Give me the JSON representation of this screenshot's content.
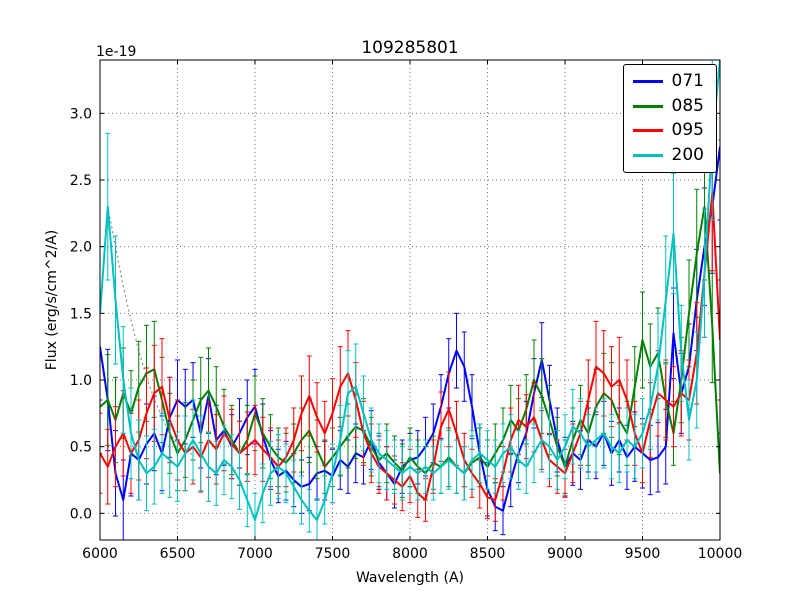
{
  "chart_data": {
    "type": "line",
    "title": "109285801",
    "xlabel": "Wavelength (A)",
    "ylabel": "Flux (erg/s/cm^2/A)",
    "y_offset_text": "1e-19",
    "grid": true,
    "legend_position": "upper right",
    "xlim": [
      6000,
      10000
    ],
    "ylim": [
      -0.2,
      3.4
    ],
    "xticks": [
      6000,
      6500,
      7000,
      7500,
      8000,
      8500,
      9000,
      9500,
      10000
    ],
    "xtick_labels": [
      "6000",
      "6500",
      "7000",
      "7500",
      "8000",
      "8500",
      "9000",
      "9500",
      "10000"
    ],
    "yticks": [
      0.0,
      0.5,
      1.0,
      1.5,
      2.0,
      2.5,
      3.0
    ],
    "ytick_labels": [
      "0.0",
      "0.5",
      "1.0",
      "1.5",
      "2.0",
      "2.5",
      "3.0"
    ],
    "x": [
      6000,
      6050,
      6100,
      6150,
      6200,
      6250,
      6300,
      6350,
      6400,
      6450,
      6500,
      6550,
      6600,
      6650,
      6700,
      6750,
      6800,
      6850,
      6900,
      6950,
      7000,
      7050,
      7100,
      7150,
      7200,
      7250,
      7300,
      7350,
      7400,
      7450,
      7500,
      7550,
      7600,
      7650,
      7700,
      7750,
      7800,
      7850,
      7900,
      7950,
      8000,
      8050,
      8100,
      8150,
      8200,
      8250,
      8300,
      8350,
      8400,
      8450,
      8500,
      8550,
      8600,
      8650,
      8700,
      8750,
      8800,
      8850,
      8900,
      8950,
      9000,
      9050,
      9100,
      9150,
      9200,
      9250,
      9300,
      9350,
      9400,
      9450,
      9500,
      9550,
      9600,
      9650,
      9700,
      9750,
      9800,
      9850,
      9900,
      9950,
      10000
    ],
    "series": [
      {
        "name": "071",
        "color": "#0000ff",
        "values": [
          1.25,
          0.85,
          0.3,
          0.1,
          0.45,
          0.4,
          0.52,
          0.6,
          0.45,
          0.72,
          0.85,
          0.8,
          0.85,
          0.6,
          0.88,
          0.55,
          0.62,
          0.5,
          0.6,
          0.72,
          0.8,
          0.58,
          0.4,
          0.28,
          0.32,
          0.25,
          0.2,
          0.22,
          0.3,
          0.32,
          0.28,
          0.4,
          0.35,
          0.45,
          0.42,
          0.55,
          0.38,
          0.3,
          0.22,
          0.35,
          0.4,
          0.42,
          0.5,
          0.6,
          0.8,
          1.05,
          1.22,
          1.1,
          0.8,
          0.45,
          0.18,
          0.05,
          0.02,
          0.25,
          0.45,
          0.6,
          0.9,
          1.15,
          0.85,
          0.55,
          0.35,
          0.45,
          0.4,
          0.55,
          0.5,
          0.6,
          0.45,
          0.55,
          0.42,
          0.5,
          0.45,
          0.4,
          0.42,
          0.5,
          1.35,
          0.9,
          1.1,
          1.6,
          2.0,
          2.3,
          2.75
        ],
        "errors": [
          0.4,
          0.38,
          0.32,
          0.3,
          0.32,
          0.3,
          0.3,
          0.28,
          0.28,
          0.3,
          0.3,
          0.28,
          0.28,
          0.26,
          0.28,
          0.26,
          0.26,
          0.24,
          0.26,
          0.28,
          0.28,
          0.24,
          0.22,
          0.2,
          0.22,
          0.2,
          0.2,
          0.2,
          0.2,
          0.22,
          0.2,
          0.22,
          0.2,
          0.22,
          0.2,
          0.22,
          0.2,
          0.2,
          0.18,
          0.2,
          0.2,
          0.2,
          0.22,
          0.22,
          0.24,
          0.26,
          0.28,
          0.26,
          0.24,
          0.22,
          0.2,
          0.18,
          0.18,
          0.2,
          0.22,
          0.24,
          0.26,
          0.28,
          0.26,
          0.24,
          0.22,
          0.24,
          0.22,
          0.24,
          0.24,
          0.24,
          0.24,
          0.24,
          0.24,
          0.26,
          0.26,
          0.26,
          0.26,
          0.28,
          0.34,
          0.3,
          0.32,
          0.38,
          0.44,
          0.5,
          0.55
        ]
      },
      {
        "name": "085",
        "color": "#008000",
        "values": [
          0.8,
          0.85,
          0.7,
          0.9,
          0.75,
          0.95,
          1.05,
          1.08,
          0.85,
          0.6,
          0.45,
          0.55,
          0.7,
          0.85,
          0.92,
          0.8,
          0.65,
          0.55,
          0.45,
          0.55,
          0.75,
          0.6,
          0.5,
          0.42,
          0.38,
          0.45,
          0.55,
          0.62,
          0.48,
          0.35,
          0.42,
          0.5,
          0.58,
          0.65,
          0.62,
          0.5,
          0.4,
          0.45,
          0.38,
          0.32,
          0.42,
          0.35,
          0.3,
          0.38,
          0.35,
          0.42,
          0.35,
          0.3,
          0.38,
          0.42,
          0.35,
          0.45,
          0.55,
          0.7,
          0.62,
          0.78,
          1.0,
          0.88,
          0.7,
          0.5,
          0.35,
          0.55,
          0.7,
          0.6,
          0.8,
          0.9,
          0.85,
          0.7,
          0.6,
          0.95,
          1.3,
          1.1,
          1.2,
          0.85,
          0.6,
          1.0,
          1.5,
          1.95,
          2.3,
          1.4,
          0.3
        ],
        "errors": [
          0.35,
          0.34,
          0.32,
          0.34,
          0.32,
          0.34,
          0.36,
          0.36,
          0.32,
          0.3,
          0.28,
          0.28,
          0.3,
          0.32,
          0.32,
          0.3,
          0.28,
          0.26,
          0.24,
          0.26,
          0.28,
          0.26,
          0.24,
          0.22,
          0.22,
          0.22,
          0.24,
          0.24,
          0.22,
          0.2,
          0.22,
          0.22,
          0.24,
          0.24,
          0.24,
          0.22,
          0.2,
          0.22,
          0.2,
          0.2,
          0.22,
          0.2,
          0.2,
          0.2,
          0.2,
          0.22,
          0.2,
          0.2,
          0.2,
          0.22,
          0.2,
          0.22,
          0.24,
          0.26,
          0.24,
          0.26,
          0.3,
          0.28,
          0.26,
          0.22,
          0.2,
          0.24,
          0.26,
          0.24,
          0.28,
          0.3,
          0.28,
          0.26,
          0.24,
          0.3,
          0.36,
          0.32,
          0.34,
          0.28,
          0.24,
          0.32,
          0.4,
          0.48,
          0.55,
          0.42,
          0.3
        ]
      },
      {
        "name": "095",
        "color": "#ff0000",
        "values": [
          0.45,
          0.35,
          0.5,
          0.6,
          0.45,
          0.55,
          0.75,
          0.9,
          0.95,
          0.7,
          0.55,
          0.45,
          0.5,
          0.42,
          0.55,
          0.48,
          0.6,
          0.52,
          0.45,
          0.5,
          0.55,
          0.48,
          0.42,
          0.35,
          0.42,
          0.55,
          0.75,
          0.88,
          0.72,
          0.6,
          0.75,
          0.95,
          1.05,
          0.85,
          0.6,
          0.45,
          0.35,
          0.3,
          0.25,
          0.2,
          0.28,
          0.15,
          0.1,
          0.35,
          0.65,
          0.78,
          0.6,
          0.4,
          0.3,
          0.22,
          0.12,
          0.1,
          0.3,
          0.55,
          0.7,
          0.65,
          0.72,
          0.55,
          0.4,
          0.35,
          0.3,
          0.45,
          0.6,
          0.85,
          1.1,
          1.05,
          0.95,
          1.0,
          0.85,
          0.6,
          0.45,
          0.7,
          0.9,
          0.85,
          0.8,
          0.9,
          0.85,
          1.2,
          1.8,
          2.4,
          1.3
        ],
        "errors": [
          0.3,
          0.28,
          0.3,
          0.32,
          0.3,
          0.3,
          0.34,
          0.36,
          0.36,
          0.32,
          0.3,
          0.28,
          0.28,
          0.26,
          0.28,
          0.26,
          0.28,
          0.26,
          0.24,
          0.26,
          0.26,
          0.24,
          0.22,
          0.2,
          0.22,
          0.24,
          0.28,
          0.3,
          0.26,
          0.24,
          0.26,
          0.3,
          0.32,
          0.28,
          0.24,
          0.22,
          0.2,
          0.2,
          0.18,
          0.18,
          0.2,
          0.18,
          0.16,
          0.2,
          0.26,
          0.28,
          0.24,
          0.2,
          0.18,
          0.18,
          0.16,
          0.16,
          0.2,
          0.24,
          0.26,
          0.24,
          0.26,
          0.22,
          0.2,
          0.2,
          0.18,
          0.22,
          0.24,
          0.3,
          0.34,
          0.32,
          0.3,
          0.32,
          0.3,
          0.24,
          0.22,
          0.28,
          0.32,
          0.3,
          0.3,
          0.32,
          0.3,
          0.38,
          0.48,
          0.58,
          0.45
        ]
      },
      {
        "name": "200",
        "color": "#00c0c0",
        "values": [
          1.5,
          2.3,
          1.6,
          1.0,
          0.6,
          0.4,
          0.3,
          0.35,
          0.45,
          0.4,
          0.35,
          0.45,
          0.55,
          0.45,
          0.35,
          0.3,
          0.4,
          0.35,
          0.25,
          0.1,
          -0.05,
          0.15,
          0.3,
          0.35,
          0.3,
          0.2,
          0.1,
          0.02,
          -0.05,
          0.1,
          0.3,
          0.55,
          0.9,
          0.95,
          0.75,
          0.55,
          0.45,
          0.4,
          0.35,
          0.3,
          0.35,
          0.3,
          0.35,
          0.3,
          0.35,
          0.4,
          0.35,
          0.3,
          0.4,
          0.45,
          0.4,
          0.35,
          0.45,
          0.5,
          0.4,
          0.35,
          0.45,
          0.55,
          0.5,
          0.4,
          0.5,
          0.65,
          0.6,
          0.5,
          0.55,
          0.6,
          0.5,
          0.45,
          0.55,
          0.5,
          0.6,
          0.8,
          1.1,
          1.6,
          2.1,
          1.2,
          0.7,
          1.0,
          1.8,
          2.8,
          3.4
        ],
        "errors": [
          0.5,
          0.55,
          0.48,
          0.4,
          0.34,
          0.3,
          0.28,
          0.28,
          0.3,
          0.28,
          0.26,
          0.28,
          0.3,
          0.28,
          0.26,
          0.24,
          0.26,
          0.24,
          0.22,
          0.2,
          0.2,
          0.22,
          0.24,
          0.24,
          0.22,
          0.2,
          0.18,
          0.16,
          0.16,
          0.18,
          0.22,
          0.26,
          0.32,
          0.32,
          0.28,
          0.24,
          0.22,
          0.22,
          0.2,
          0.2,
          0.2,
          0.2,
          0.2,
          0.2,
          0.2,
          0.22,
          0.2,
          0.2,
          0.22,
          0.22,
          0.22,
          0.2,
          0.22,
          0.24,
          0.22,
          0.2,
          0.22,
          0.24,
          0.24,
          0.22,
          0.24,
          0.28,
          0.26,
          0.24,
          0.24,
          0.26,
          0.24,
          0.22,
          0.24,
          0.24,
          0.26,
          0.32,
          0.4,
          0.48,
          0.45,
          0.36,
          0.3,
          0.36,
          0.48,
          0.6,
          0.6
        ]
      }
    ],
    "unlabeled_traces": [
      {
        "name": "unlabeled-dotted-trace",
        "color": "#888888",
        "style": "dotted",
        "x": [
          6050,
          6100,
          6150,
          6200,
          6250,
          6300,
          6350,
          6400,
          6450,
          6500,
          6550,
          6600
        ],
        "values": [
          2.3,
          2.0,
          1.7,
          1.45,
          1.22,
          1.02,
          0.86,
          0.72,
          0.6,
          0.52,
          0.47,
          0.44
        ]
      }
    ]
  }
}
